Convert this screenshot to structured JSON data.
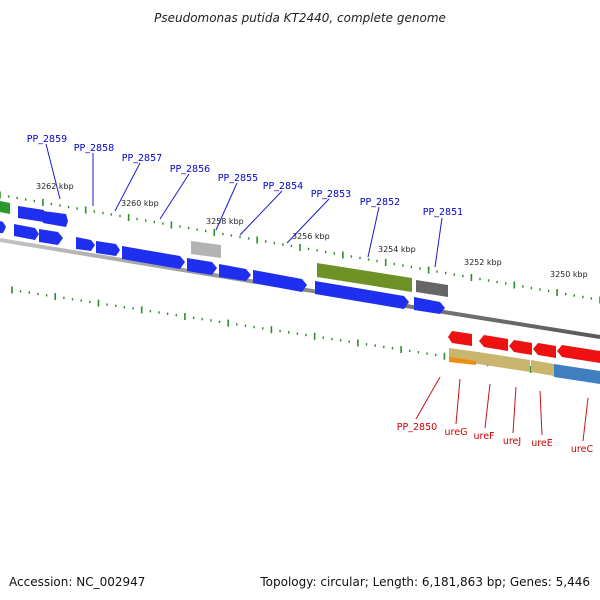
{
  "title": "Pseudomonas putida KT2440, complete genome",
  "footer": {
    "accession": "Accession: NC_002947",
    "summary": "Topology: circular; Length: 6,181,863 bp; Genes: 5,446"
  },
  "colors": {
    "blue_gene": "#1f2ff0",
    "red_gene": "#ee1111",
    "olive_gene": "#6e9126",
    "gray_gene": "#b0b0b0",
    "darkgray_gene": "#666666",
    "tan_gene": "#c9b56e",
    "orange_gene": "#f08c10",
    "steel_gene": "#3f7fbf",
    "green_tick": "#2e8b2e",
    "blue_label": "#0000cc",
    "red_label": "#cc0000"
  },
  "scale_labels": [
    {
      "text": "3262 kbp"
    },
    {
      "text": "3260 kbp"
    },
    {
      "text": "3258 kbp"
    },
    {
      "text": "3256 kbp"
    },
    {
      "text": "3254 kbp"
    },
    {
      "text": "3252 kbp"
    },
    {
      "text": "3250 kbp"
    }
  ],
  "gene_labels_forward": [
    {
      "text": "PP_2859"
    },
    {
      "text": "PP_2858"
    },
    {
      "text": "PP_2857"
    },
    {
      "text": "PP_2856"
    },
    {
      "text": "PP_2855"
    },
    {
      "text": "PP_2854"
    },
    {
      "text": "PP_2853"
    },
    {
      "text": "PP_2852"
    },
    {
      "text": "PP_2851"
    }
  ],
  "gene_labels_reverse": [
    {
      "text": "PP_2850"
    },
    {
      "text": "ureG"
    },
    {
      "text": "ureF"
    },
    {
      "text": "ureJ"
    },
    {
      "text": "ureE"
    },
    {
      "text": "ureC"
    }
  ]
}
